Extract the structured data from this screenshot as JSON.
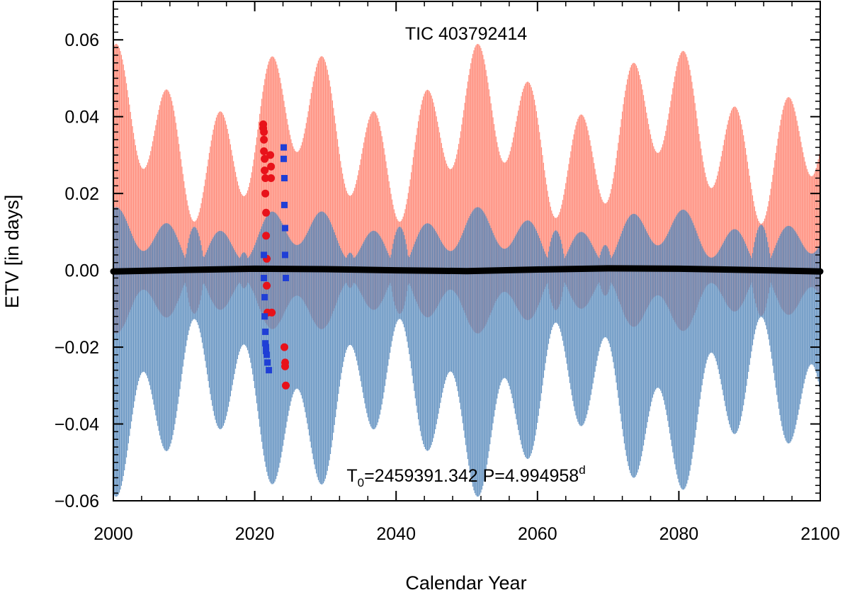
{
  "chart_data": {
    "type": "scatter",
    "title": "TIC 403792414",
    "annotation": {
      "t0_label": "T",
      "t0_sub": "0",
      "t0_value": "=2459391.342",
      "period_label": " P=4.994958",
      "period_sup": "d"
    },
    "xlabel": "Calendar Year",
    "ylabel": "ETV [in days]",
    "xlim": [
      2000,
      2100
    ],
    "ylim": [
      -0.06,
      0.07
    ],
    "xticks": [
      2000,
      2020,
      2040,
      2060,
      2080,
      2100
    ],
    "xtick_labels": [
      "2000",
      "2020",
      "2040",
      "2060",
      "2080",
      "2100"
    ],
    "yticks": [
      -0.06,
      -0.04,
      -0.02,
      0.0,
      0.02,
      0.04,
      0.06
    ],
    "ytick_labels": [
      "−0.06",
      "−0.04",
      "−0.02",
      "0.00",
      "0.02",
      "0.04",
      "0.06"
    ],
    "colors": {
      "primary_model": "#ff7a66",
      "secondary_model": "#4f84b8",
      "primary_obs": "#e8121a",
      "secondary_obs": "#1f3fd6",
      "ltte": "#000000"
    },
    "series": [
      {
        "name": "primary model",
        "kind": "envelope",
        "amplitude_days": 0.047,
        "envelope_periods_yr": [
          7.3,
          26.0
        ],
        "fast_offset_days": 0.012,
        "sign": 1
      },
      {
        "name": "secondary model",
        "kind": "envelope",
        "amplitude_days": 0.047,
        "envelope_periods_yr": [
          7.3,
          26.0
        ],
        "fast_offset_days": 0.012,
        "sign": -1
      },
      {
        "name": "LTTE curve",
        "kind": "line",
        "x": [
          2000,
          2010,
          2020,
          2030,
          2040,
          2050,
          2060,
          2070,
          2080,
          2090,
          2100
        ],
        "y": [
          -0.0003,
          0.0001,
          0.0004,
          0.0003,
          0.0,
          -0.0002,
          0.0002,
          0.0005,
          0.0004,
          0.0001,
          -0.0003
        ]
      },
      {
        "name": "primary observed",
        "kind": "points",
        "marker": "circle",
        "x": [
          2021.2,
          2021.2,
          2021.3,
          2021.3,
          2021.3,
          2021.4,
          2021.4,
          2021.5,
          2021.5,
          2021.6,
          2021.6,
          2021.7,
          2021.7,
          2021.8,
          2022.2,
          2022.3,
          2022.3,
          2022.4,
          2024.2,
          2024.3,
          2024.3,
          2024.4
        ],
        "y": [
          0.038,
          0.037,
          0.036,
          0.034,
          0.031,
          0.029,
          0.026,
          0.024,
          0.02,
          0.015,
          0.009,
          0.003,
          -0.004,
          -0.011,
          0.03,
          0.027,
          0.024,
          -0.011,
          -0.02,
          -0.024,
          -0.025,
          -0.03
        ]
      },
      {
        "name": "secondary observed",
        "kind": "points",
        "marker": "square",
        "x": [
          2021.3,
          2021.3,
          2021.4,
          2021.4,
          2021.5,
          2021.5,
          2021.6,
          2021.6,
          2021.7,
          2021.8,
          2022.0,
          2024.1,
          2024.1,
          2024.2,
          2024.2,
          2024.3,
          2024.3,
          2024.4
        ],
        "y": [
          0.004,
          -0.002,
          -0.007,
          -0.012,
          -0.016,
          -0.019,
          -0.02,
          -0.021,
          -0.022,
          -0.024,
          -0.026,
          0.032,
          0.029,
          0.024,
          0.017,
          0.011,
          0.004,
          -0.002
        ]
      }
    ],
    "grid": false,
    "legend": "none"
  }
}
